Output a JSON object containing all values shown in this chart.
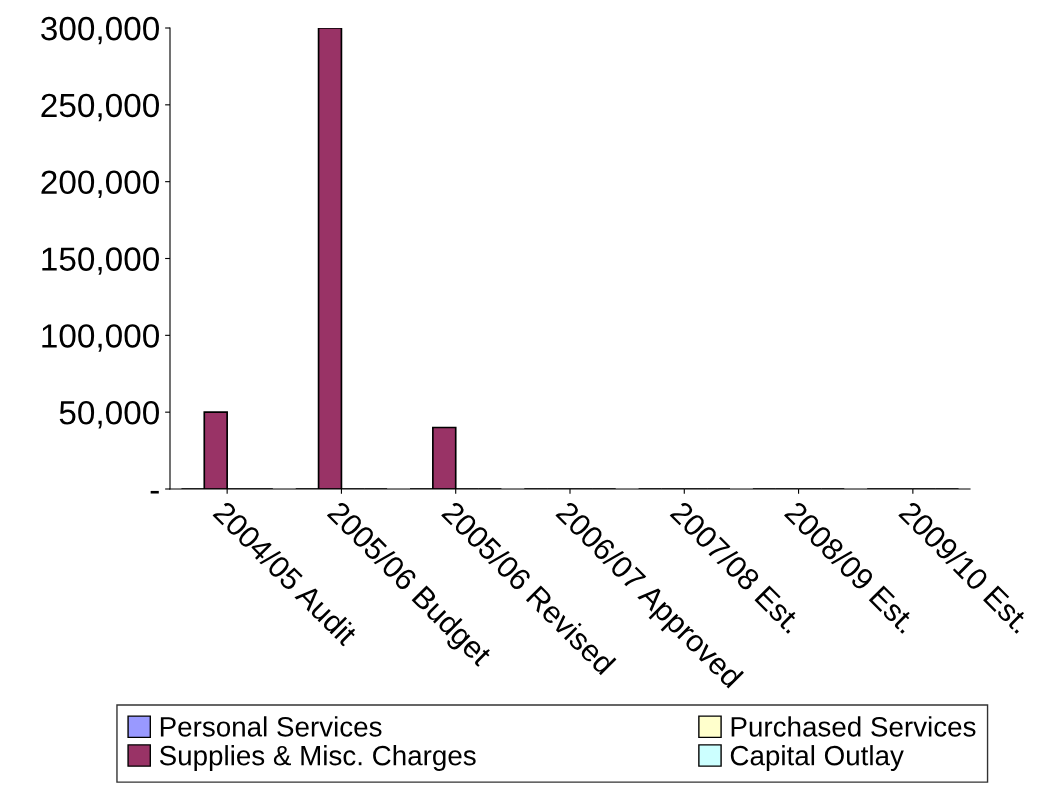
{
  "chart_data": {
    "type": "bar",
    "categories": [
      "2004/05 Audit",
      "2005/06 Budget",
      "2005/06 Revised",
      "2006/07 Approved",
      "2007/08 Est.",
      "2008/09 Est.",
      "2009/10 Est."
    ],
    "series": [
      {
        "name": "Personal Services",
        "color": "#9999ff",
        "values": [
          0,
          0,
          0,
          0,
          0,
          0,
          0
        ]
      },
      {
        "name": "Supplies & Misc. Charges",
        "color": "#993366",
        "values": [
          50000,
          300000,
          40000,
          0,
          0,
          0,
          0
        ]
      },
      {
        "name": "Purchased Services",
        "color": "#ffffcc",
        "values": [
          0,
          0,
          0,
          0,
          0,
          0,
          0
        ]
      },
      {
        "name": "Capital Outlay",
        "color": "#ccffff",
        "values": [
          0,
          0,
          0,
          0,
          0,
          0,
          0
        ]
      }
    ],
    "ylim": [
      0,
      300000
    ],
    "yticks": [
      {
        "value": 0,
        "label": "-"
      },
      {
        "value": 50000,
        "label": "50,000"
      },
      {
        "value": 100000,
        "label": "100,000"
      },
      {
        "value": 150000,
        "label": "150,000"
      },
      {
        "value": 200000,
        "label": "200,000"
      },
      {
        "value": 250000,
        "label": "250,000"
      },
      {
        "value": 300000,
        "label": "300,000"
      }
    ],
    "grid": false,
    "legend": "bottom"
  }
}
